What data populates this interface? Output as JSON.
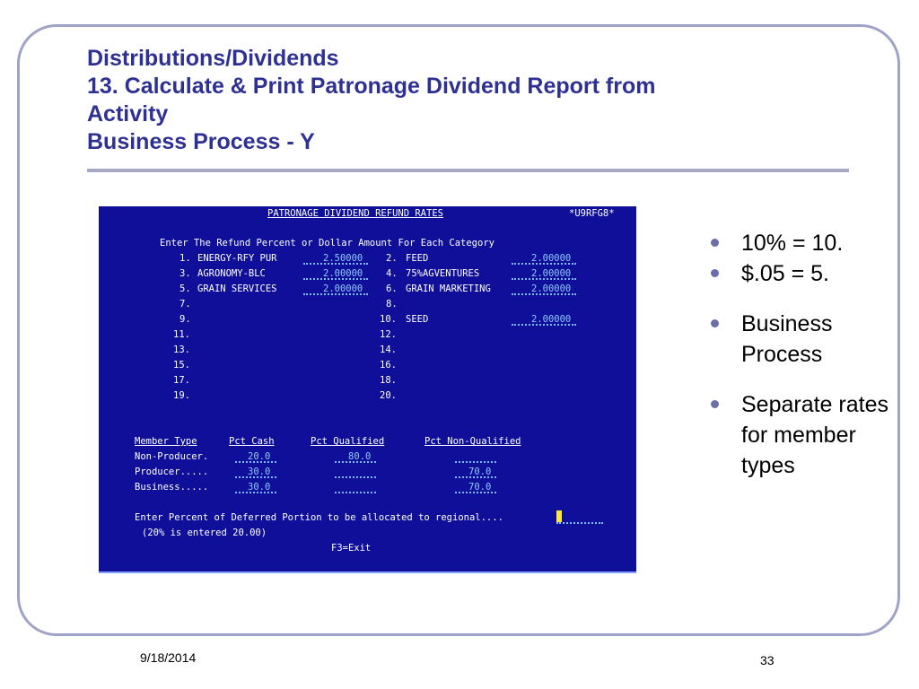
{
  "slide": {
    "title_lines": [
      "Distributions/Dividends",
      "13.  Calculate & Print Patronage Dividend Report from",
      "Activity",
      "Business Process - Y"
    ],
    "bullets": [
      "10% = 10.",
      "$.05 = 5.",
      "Business Process",
      "Separate rates for member types"
    ],
    "date": "9/18/2014",
    "page_number": "33"
  },
  "colors": {
    "title": "#2e3192",
    "terminal_bg": "#0f0f9a",
    "terminal_text": "#ffffff",
    "input_text": "#8fc8ff",
    "cursor": "#ffe640"
  },
  "terminal": {
    "header": "PATRONAGE DIVIDEND REFUND RATES",
    "screen_id": "*U9RFG8*",
    "instruction": "Enter The Refund Percent or Dollar Amount For Each Category",
    "categories": [
      {
        "num": "1.",
        "name": "ENERGY-RFY PUR",
        "value": "2.50000"
      },
      {
        "num": "2.",
        "name": "FEED",
        "value": "2.00000"
      },
      {
        "num": "3.",
        "name": "AGRONOMY-BLC",
        "value": "2.00000"
      },
      {
        "num": "4.",
        "name": "75%AGVENTURES",
        "value": "2.00000"
      },
      {
        "num": "5.",
        "name": "GRAIN SERVICES",
        "value": "2.00000"
      },
      {
        "num": "6.",
        "name": "GRAIN MARKETING",
        "value": "2.00000"
      },
      {
        "num": "7.",
        "name": "",
        "value": ""
      },
      {
        "num": "8.",
        "name": "",
        "value": ""
      },
      {
        "num": "9.",
        "name": "",
        "value": ""
      },
      {
        "num": "10.",
        "name": "SEED",
        "value": "2.00000"
      },
      {
        "num": "11.",
        "name": "",
        "value": ""
      },
      {
        "num": "12.",
        "name": "",
        "value": ""
      },
      {
        "num": "13.",
        "name": "",
        "value": ""
      },
      {
        "num": "14.",
        "name": "",
        "value": ""
      },
      {
        "num": "15.",
        "name": "",
        "value": ""
      },
      {
        "num": "16.",
        "name": "",
        "value": ""
      },
      {
        "num": "17.",
        "name": "",
        "value": ""
      },
      {
        "num": "18.",
        "name": "",
        "value": ""
      },
      {
        "num": "19.",
        "name": "",
        "value": ""
      },
      {
        "num": "20.",
        "name": "",
        "value": ""
      }
    ],
    "member_headers": [
      "Member Type",
      "Pct Cash",
      "Pct Qualified",
      "Pct Non-Qualified"
    ],
    "members": [
      {
        "type": "Non-Producer.",
        "cash": "20.0",
        "qualified": "80.0",
        "nonqualified": ""
      },
      {
        "type": "Producer.....",
        "cash": "30.0",
        "qualified": "",
        "nonqualified": "70.0"
      },
      {
        "type": "Business.....",
        "cash": "30.0",
        "qualified": "",
        "nonqualified": "70.0"
      }
    ],
    "deferred_prompt": "Enter Percent of Deferred Portion to be allocated to regional....",
    "deferred_note": "(20% is entered 20.00)",
    "exit_key": "F3=Exit"
  }
}
